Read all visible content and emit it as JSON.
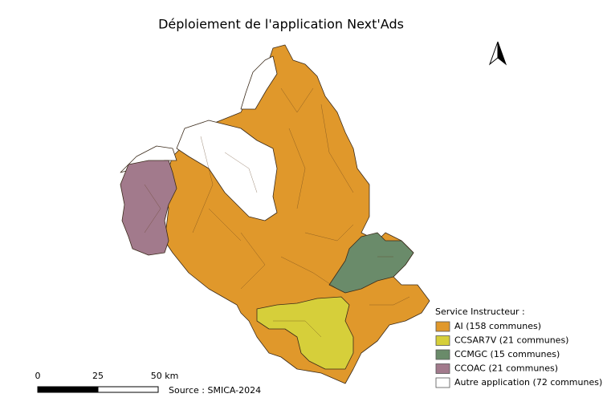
{
  "title": "Déploiement de l'application Next'Ads",
  "legend": {
    "title": "Service Instructeur :",
    "items": [
      {
        "label": "AI (158 communes)",
        "color": "#e0982b"
      },
      {
        "label": "CCSAR7V (21 communes)",
        "color": "#d6cf3a"
      },
      {
        "label": "CCMGC (15 communes)",
        "color": "#6a8b6a"
      },
      {
        "label": "CCOAC (21 communes)",
        "color": "#a27a8c"
      },
      {
        "label": "Autre application (72 communes)",
        "color": "#ffffff"
      }
    ]
  },
  "scale_bar": {
    "labels": [
      "0",
      "25",
      "50 km"
    ]
  },
  "source": "Source : SMICA-2024"
}
